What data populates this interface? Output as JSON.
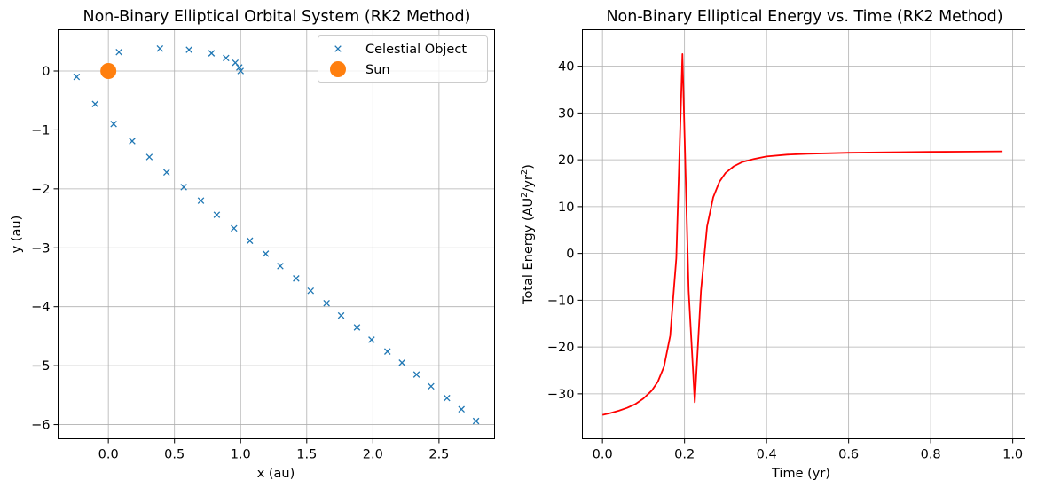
{
  "chart_data": [
    {
      "type": "scatter",
      "title": "Non-Binary Elliptical Orbital System (RK2 Method)",
      "xlabel": "x (au)",
      "ylabel": "y (au)",
      "xlim": [
        -0.38,
        2.92
      ],
      "ylim": [
        -6.24,
        0.7
      ],
      "xticks": [
        0.0,
        0.5,
        1.0,
        1.5,
        2.0,
        2.5
      ],
      "xtick_labels": [
        "0.0",
        "0.5",
        "1.0",
        "1.5",
        "2.0",
        "2.5"
      ],
      "yticks": [
        0,
        -1,
        -2,
        -3,
        -4,
        -5,
        -6
      ],
      "ytick_labels": [
        "0",
        "−1",
        "−2",
        "−3",
        "−4",
        "−5",
        "−6"
      ],
      "grid": true,
      "legend_position": "top-right",
      "series": [
        {
          "name": "Celestial Object",
          "marker": "x",
          "color": "#1f77b4",
          "points": [
            [
              1.0,
              0.0
            ],
            [
              0.99,
              0.06
            ],
            [
              0.96,
              0.14
            ],
            [
              0.89,
              0.22
            ],
            [
              0.78,
              0.3
            ],
            [
              0.61,
              0.36
            ],
            [
              0.39,
              0.38
            ],
            [
              0.08,
              0.32
            ],
            [
              -0.24,
              -0.1
            ],
            [
              -0.1,
              -0.56
            ],
            [
              0.04,
              -0.9
            ],
            [
              0.18,
              -1.19
            ],
            [
              0.31,
              -1.46
            ],
            [
              0.44,
              -1.72
            ],
            [
              0.57,
              -1.97
            ],
            [
              0.7,
              -2.2
            ],
            [
              0.82,
              -2.44
            ],
            [
              0.95,
              -2.67
            ],
            [
              1.07,
              -2.88
            ],
            [
              1.19,
              -3.1
            ],
            [
              1.3,
              -3.31
            ],
            [
              1.42,
              -3.52
            ],
            [
              1.53,
              -3.73
            ],
            [
              1.65,
              -3.94
            ],
            [
              1.76,
              -4.15
            ],
            [
              1.88,
              -4.35
            ],
            [
              1.99,
              -4.56
            ],
            [
              2.11,
              -4.76
            ],
            [
              2.22,
              -4.95
            ],
            [
              2.33,
              -5.15
            ],
            [
              2.44,
              -5.35
            ],
            [
              2.56,
              -5.55
            ],
            [
              2.67,
              -5.74
            ],
            [
              2.78,
              -5.94
            ]
          ]
        },
        {
          "name": "Sun",
          "marker": "circle",
          "color": "#ff7f0e",
          "points": [
            [
              0.0,
              0.0
            ]
          ]
        }
      ]
    },
    {
      "type": "line",
      "title": "Non-Binary Elliptical Energy vs. Time (RK2 Method)",
      "xlabel": "Time (yr)",
      "ylabel_prefix": "Total Energy (AU",
      "ylabel_sup1": "2",
      "ylabel_mid": "/yr",
      "ylabel_sup2": "2",
      "ylabel_suffix": ")",
      "xlim": [
        -0.049,
        1.03
      ],
      "ylim": [
        -39.6,
        47.8
      ],
      "xticks": [
        0.0,
        0.2,
        0.4,
        0.6,
        0.8,
        1.0
      ],
      "xtick_labels": [
        "0.0",
        "0.2",
        "0.4",
        "0.6",
        "0.8",
        "1.0"
      ],
      "yticks": [
        40,
        30,
        20,
        10,
        0,
        -10,
        -20,
        -30
      ],
      "ytick_labels": [
        "40",
        "30",
        "20",
        "10",
        "0",
        "−10",
        "−20",
        "−30"
      ],
      "grid": true,
      "series": [
        {
          "color": "#ff0000",
          "x": [
            0.0,
            0.02,
            0.04,
            0.06,
            0.08,
            0.1,
            0.12,
            0.135,
            0.15,
            0.165,
            0.18,
            0.195,
            0.21,
            0.225,
            0.24,
            0.255,
            0.27,
            0.285,
            0.3,
            0.32,
            0.34,
            0.37,
            0.4,
            0.45,
            0.5,
            0.6,
            0.7,
            0.8,
            0.9,
            0.975
          ],
          "y": [
            -34.5,
            -34.1,
            -33.6,
            -33.0,
            -32.2,
            -31.0,
            -29.3,
            -27.4,
            -24.2,
            -17.6,
            -1.0,
            42.6,
            -8.0,
            -31.8,
            -8.0,
            5.8,
            12.0,
            15.3,
            17.2,
            18.6,
            19.5,
            20.2,
            20.7,
            21.1,
            21.3,
            21.5,
            21.6,
            21.7,
            21.75,
            21.8
          ]
        }
      ]
    }
  ]
}
